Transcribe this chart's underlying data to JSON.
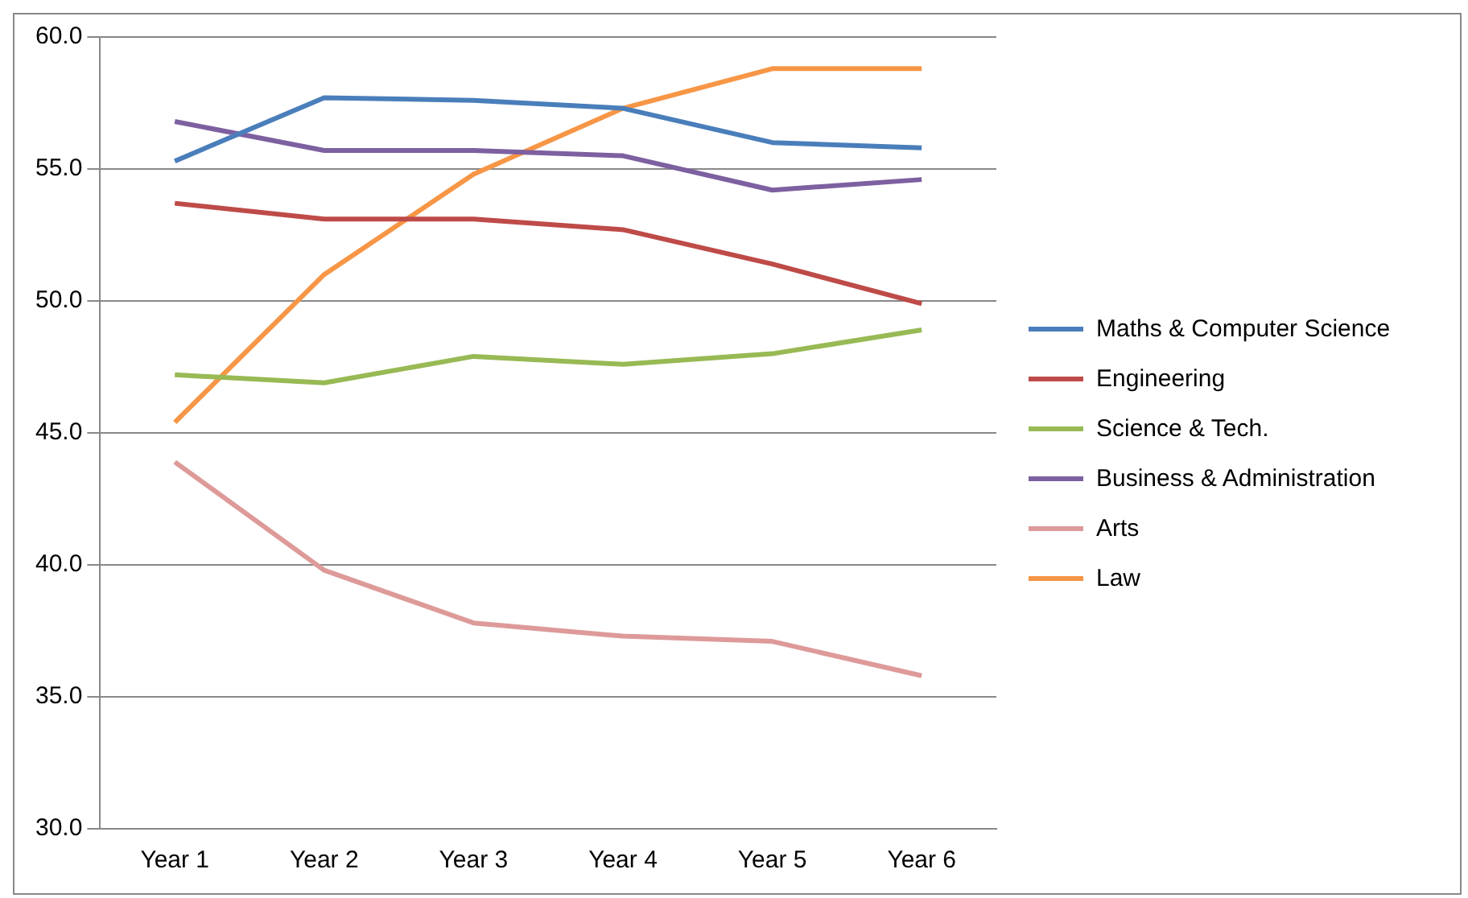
{
  "chart_data": {
    "type": "line",
    "categories": [
      "Year 1",
      "Year 2",
      "Year 3",
      "Year 4",
      "Year 5",
      "Year 6"
    ],
    "series": [
      {
        "name": "Maths & Computer Science",
        "color": "#4a7ebb",
        "values": [
          55.3,
          57.7,
          57.6,
          57.3,
          56.0,
          55.8
        ]
      },
      {
        "name": "Engineering",
        "color": "#be4b48",
        "values": [
          53.7,
          53.1,
          53.1,
          52.7,
          51.4,
          49.9
        ]
      },
      {
        "name": "Science & Tech.",
        "color": "#98b954",
        "values": [
          47.2,
          46.9,
          47.9,
          47.6,
          48.0,
          48.9
        ]
      },
      {
        "name": "Business & Administration",
        "color": "#7d60a0",
        "values": [
          56.8,
          55.7,
          55.7,
          55.5,
          54.2,
          54.6
        ]
      },
      {
        "name": "Arts",
        "color": "#dd9a99",
        "values": [
          43.9,
          39.8,
          37.8,
          37.3,
          37.1,
          35.8
        ]
      },
      {
        "name": "Law",
        "color": "#f79646",
        "values": [
          45.4,
          51.0,
          54.8,
          57.3,
          58.8,
          58.8
        ]
      }
    ],
    "ylim": [
      30,
      60
    ],
    "yticks": [
      {
        "value": 30,
        "label": "30.0"
      },
      {
        "value": 35,
        "label": "35.0"
      },
      {
        "value": 40,
        "label": "40.0"
      },
      {
        "value": 45,
        "label": "45.0"
      },
      {
        "value": 50,
        "label": "50.0"
      },
      {
        "value": 55,
        "label": "55.0"
      },
      {
        "value": 60,
        "label": "60.0"
      }
    ],
    "grid": "y",
    "legend": "right",
    "marker": "none",
    "line_style": "solid"
  }
}
